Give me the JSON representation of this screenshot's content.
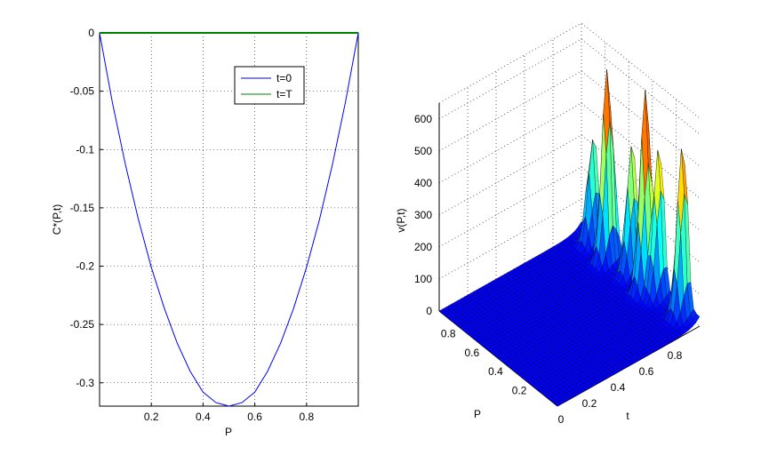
{
  "chart_data": [
    {
      "type": "line",
      "xlabel": "P",
      "ylabel": "C*(P,t)",
      "xlim": [
        0,
        1
      ],
      "ylim": [
        -0.32,
        0
      ],
      "x_ticks": [
        "0.2",
        "0.4",
        "0.6",
        "0.8"
      ],
      "x_tick_values": [
        0.2,
        0.4,
        0.6,
        0.8
      ],
      "y_ticks": [
        "0",
        "-0.05",
        "-0.1",
        "-0.15",
        "-0.2",
        "-0.25",
        "-0.3"
      ],
      "y_tick_values": [
        0,
        -0.05,
        -0.1,
        -0.15,
        -0.2,
        -0.25,
        -0.3
      ],
      "grid": true,
      "legend": "top-right",
      "series": [
        {
          "name": "t=0",
          "color": "#0000ff",
          "x": [
            0,
            0.05,
            0.1,
            0.15,
            0.2,
            0.25,
            0.3,
            0.35,
            0.4,
            0.45,
            0.5,
            0.55,
            0.6,
            0.65,
            0.7,
            0.75,
            0.8,
            0.85,
            0.9,
            0.95,
            1.0
          ],
          "y": [
            0,
            -0.06,
            -0.113,
            -0.16,
            -0.201,
            -0.236,
            -0.266,
            -0.29,
            -0.308,
            -0.317,
            -0.32,
            -0.317,
            -0.308,
            -0.29,
            -0.266,
            -0.236,
            -0.201,
            -0.16,
            -0.113,
            -0.06,
            0
          ]
        },
        {
          "name": "t=T",
          "color": "#008000",
          "x": [
            0,
            1
          ],
          "y": [
            0,
            0
          ]
        }
      ]
    },
    {
      "type": "surface",
      "xlabel": "t",
      "ylabel": "P",
      "zlabel": "v(P,t)",
      "xlim": [
        0,
        1
      ],
      "ylim": [
        0,
        1
      ],
      "zlim": [
        0,
        650
      ],
      "x_ticks": [
        "0",
        "0.2",
        "0.4",
        "0.6",
        "0.8"
      ],
      "x_tick_values": [
        0,
        0.2,
        0.4,
        0.6,
        0.8
      ],
      "y_ticks": [
        "0.2",
        "0.4",
        "0.6",
        "0.8"
      ],
      "y_tick_values": [
        0.2,
        0.4,
        0.6,
        0.8
      ],
      "z_ticks": [
        "0",
        "100",
        "200",
        "300",
        "400",
        "500",
        "600"
      ],
      "z_tick_values": [
        0,
        100,
        200,
        300,
        400,
        500,
        600
      ],
      "grid": true,
      "colormap": "jet",
      "peaks": [
        {
          "t": 0.98,
          "P": 0.12,
          "v": 520
        },
        {
          "t": 0.98,
          "P": 0.32,
          "v": 450
        },
        {
          "t": 0.98,
          "P": 0.55,
          "v": 390
        },
        {
          "t": 0.98,
          "P": 0.88,
          "v": 320
        },
        {
          "t": 0.95,
          "P": 0.72,
          "v": 600
        },
        {
          "t": 0.95,
          "P": 0.4,
          "v": 620
        }
      ]
    }
  ]
}
